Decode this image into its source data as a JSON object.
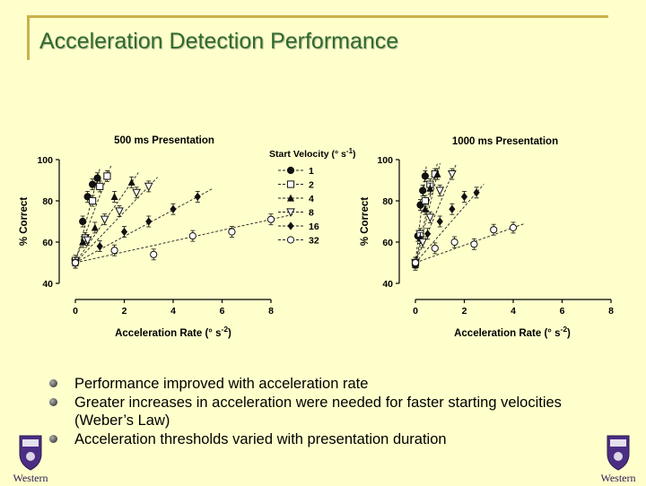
{
  "slide": {
    "title": "Acceleration Detection Performance",
    "bullets": [
      "Performance improved with acceleration rate",
      "Greater increases in acceleration were needed for faster starting velocities (Weber’s Law)",
      "Acceleration thresholds varied with presentation duration"
    ],
    "logo_text": "Western"
  },
  "legend": {
    "title": "Start  Velocity (° s",
    "title_sup": "-1",
    "title_end": ")",
    "placement": "top-right of left panel"
  },
  "chart_data": [
    {
      "type": "scatter",
      "title": "500 ms Presentation",
      "xlabel": "Acceleration Rate (° s",
      "xlabel_sup": "-2",
      "xlabel_end": ")",
      "ylabel": "% Correct",
      "xlim": [
        0,
        8
      ],
      "ylim": [
        40,
        100
      ],
      "xticks": [
        0,
        2,
        4,
        6,
        8
      ],
      "yticks": [
        40,
        60,
        80,
        100
      ],
      "series": [
        {
          "name": "1",
          "marker": "circle-filled",
          "x": [
            0.0,
            0.3,
            0.5,
            0.7,
            0.9
          ],
          "y": [
            50,
            70,
            82,
            88,
            91
          ]
        },
        {
          "name": "2",
          "marker": "square-open",
          "x": [
            0.0,
            0.4,
            0.7,
            1.0,
            1.3
          ],
          "y": [
            51,
            62,
            80,
            87,
            92
          ]
        },
        {
          "name": "4",
          "marker": "triangle-filled",
          "x": [
            0.0,
            0.3,
            0.8,
            1.6,
            2.3
          ],
          "y": [
            50,
            60,
            67,
            82,
            89
          ]
        },
        {
          "name": "8",
          "marker": "triangle-open",
          "x": [
            0.0,
            0.5,
            1.2,
            1.8,
            2.5,
            3.0
          ],
          "y": [
            50,
            61,
            71,
            75,
            84,
            87
          ]
        },
        {
          "name": "16",
          "marker": "diamond-filled",
          "x": [
            0.0,
            1.0,
            2.0,
            3.0,
            4.0,
            5.0
          ],
          "y": [
            50,
            58,
            65,
            70,
            76,
            82
          ]
        },
        {
          "name": "32",
          "marker": "circle-open",
          "x": [
            0.0,
            1.6,
            3.2,
            4.8,
            6.4,
            8.0
          ],
          "y": [
            50,
            56,
            54,
            63,
            65,
            71
          ]
        }
      ]
    },
    {
      "type": "scatter",
      "title": "1000 ms Presentation",
      "xlabel": "Acceleration Rate (° s",
      "xlabel_sup": "-2",
      "xlabel_end": ")",
      "ylabel": "% Correct",
      "xlim": [
        0,
        8
      ],
      "ylim": [
        40,
        100
      ],
      "xticks": [
        0,
        2,
        4,
        6,
        8
      ],
      "yticks": [
        40,
        60,
        80,
        100
      ],
      "series": [
        {
          "name": "1",
          "marker": "circle-filled",
          "x": [
            0.0,
            0.1,
            0.2,
            0.3,
            0.4
          ],
          "y": [
            50,
            63,
            78,
            85,
            92
          ]
        },
        {
          "name": "2",
          "marker": "square-open",
          "x": [
            0.0,
            0.2,
            0.4,
            0.6,
            0.8
          ],
          "y": [
            50,
            64,
            80,
            88,
            93
          ]
        },
        {
          "name": "4",
          "marker": "triangle-filled",
          "x": [
            0.0,
            0.2,
            0.4,
            0.6,
            0.9
          ],
          "y": [
            49,
            62,
            76,
            86,
            93
          ]
        },
        {
          "name": "8",
          "marker": "triangle-open",
          "x": [
            0.0,
            0.3,
            0.6,
            1.0,
            1.5
          ],
          "y": [
            50,
            60,
            72,
            85,
            93
          ]
        },
        {
          "name": "16",
          "marker": "diamond-filled",
          "x": [
            0.0,
            0.5,
            1.0,
            1.5,
            2.0,
            2.5
          ],
          "y": [
            50,
            64,
            70,
            76,
            82,
            84
          ]
        },
        {
          "name": "32",
          "marker": "circle-open",
          "x": [
            0.0,
            0.8,
            1.6,
            2.4,
            3.2,
            4.0
          ],
          "y": [
            50,
            57,
            60,
            59,
            66,
            67
          ]
        }
      ]
    }
  ]
}
